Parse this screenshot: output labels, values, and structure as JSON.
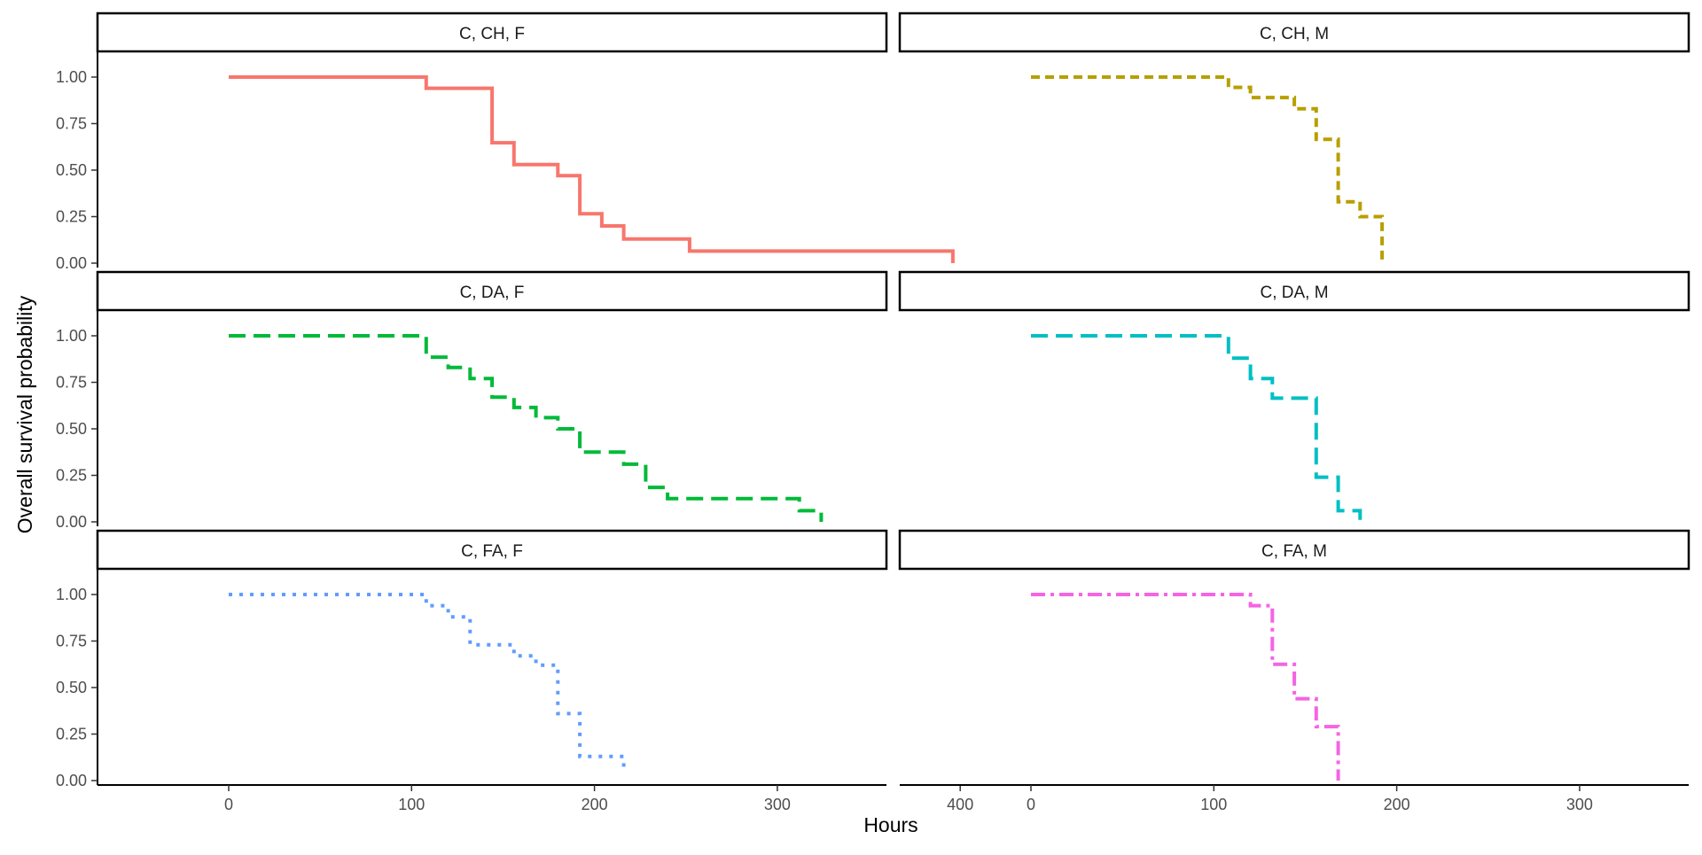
{
  "chart_data": {
    "type": "line",
    "ylabel": "Overall survival probability",
    "xlabel": "Hours",
    "xlim": [
      -20,
      420
    ],
    "ylim": [
      0,
      1
    ],
    "x_ticks": [
      0,
      100,
      200,
      300,
      400
    ],
    "y_ticks": [
      0,
      0.25,
      0.5,
      0.75,
      1
    ],
    "x_tick_labels": [
      "0",
      "100",
      "200",
      "300",
      "400"
    ],
    "y_tick_labels": [
      "0.00",
      "0.25",
      "0.50",
      "0.75",
      "1.00"
    ],
    "grid": false,
    "legend": "none",
    "panels": [
      {
        "label": "C, CH, F",
        "color": "#F8766D",
        "linestyle": "solid",
        "steps": [
          [
            0,
            1.0
          ],
          [
            108,
            0.94
          ],
          [
            144,
            0.647
          ],
          [
            156,
            0.53
          ],
          [
            180,
            0.47
          ],
          [
            192,
            0.265
          ],
          [
            204,
            0.2
          ],
          [
            216,
            0.13
          ],
          [
            252,
            0.065
          ],
          [
            396,
            0.0
          ]
        ]
      },
      {
        "label": "C, CH, M",
        "color": "#B79F00",
        "linestyle": "dashed",
        "steps": [
          [
            0,
            1.0
          ],
          [
            108,
            0.945
          ],
          [
            120,
            0.89
          ],
          [
            144,
            0.83
          ],
          [
            156,
            0.665
          ],
          [
            168,
            0.33
          ],
          [
            180,
            0.25
          ],
          [
            192,
            0.0
          ]
        ]
      },
      {
        "label": "C, DA, F",
        "color": "#00BA38",
        "linestyle": "longdash",
        "steps": [
          [
            0,
            1.0
          ],
          [
            108,
            0.885
          ],
          [
            120,
            0.83
          ],
          [
            132,
            0.77
          ],
          [
            144,
            0.67
          ],
          [
            156,
            0.615
          ],
          [
            168,
            0.56
          ],
          [
            180,
            0.5
          ],
          [
            192,
            0.375
          ],
          [
            216,
            0.31
          ],
          [
            228,
            0.185
          ],
          [
            240,
            0.125
          ],
          [
            312,
            0.06
          ],
          [
            324,
            0.0
          ]
        ]
      },
      {
        "label": "C, DA, M",
        "color": "#00BFC4",
        "linestyle": "longdash",
        "steps": [
          [
            0,
            1.0
          ],
          [
            108,
            0.88
          ],
          [
            120,
            0.77
          ],
          [
            132,
            0.665
          ],
          [
            156,
            0.24
          ],
          [
            168,
            0.06
          ],
          [
            180,
            0.0
          ]
        ]
      },
      {
        "label": "C, FA, F",
        "color": "#619CFF",
        "linestyle": "dotted",
        "steps": [
          [
            0,
            1.0
          ],
          [
            108,
            0.94
          ],
          [
            120,
            0.88
          ],
          [
            132,
            0.73
          ],
          [
            156,
            0.67
          ],
          [
            168,
            0.62
          ],
          [
            180,
            0.36
          ],
          [
            192,
            0.13
          ],
          [
            216,
            0.04
          ]
        ]
      },
      {
        "label": "C, FA, M",
        "color": "#F564E3",
        "linestyle": "dotdash",
        "steps": [
          [
            0,
            1.0
          ],
          [
            120,
            0.94
          ],
          [
            132,
            0.625
          ],
          [
            144,
            0.44
          ],
          [
            156,
            0.29
          ],
          [
            168,
            0.0
          ]
        ]
      }
    ]
  }
}
